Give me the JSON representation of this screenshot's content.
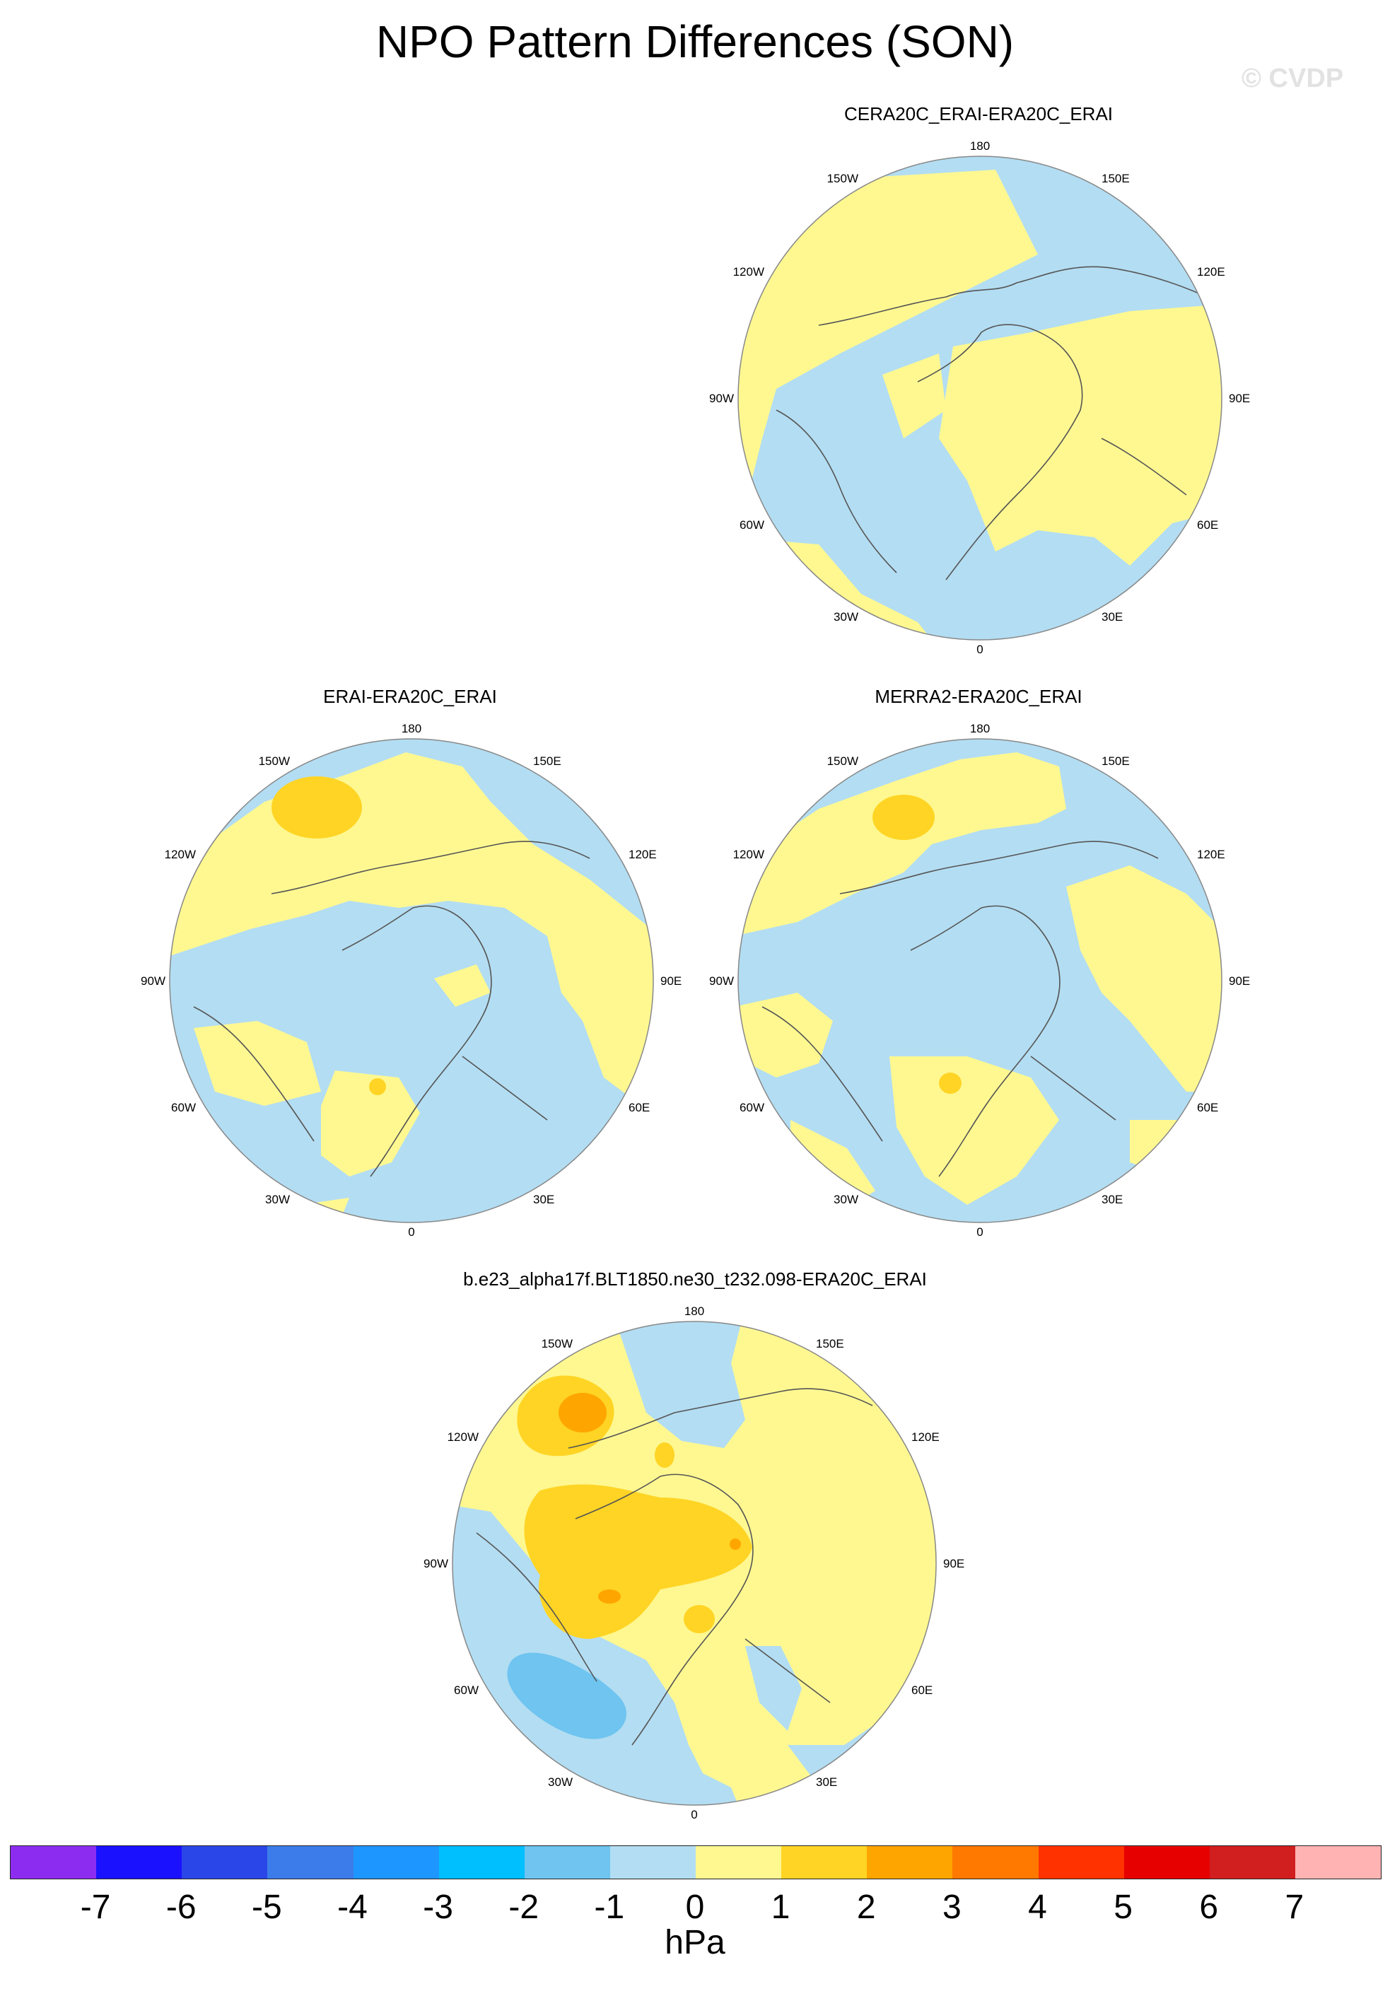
{
  "title": "NPO Pattern Differences (SON)",
  "watermark": "© CVDP",
  "colors": {
    "ocean_neg1": "#b3ddf2",
    "pos1": "#fff891",
    "pos2": "#ffd424",
    "pos3": "#ffa500",
    "neg2": "#6fc4f0",
    "coast": "#555555",
    "rim": "#888888"
  },
  "chart_data": [
    {
      "type": "heatmap",
      "projection": "north-polar-stereographic",
      "title": "CERA20C_ERAI-ERA20C_ERAI",
      "lon_labels": [
        "180",
        "150E",
        "120E",
        "90E",
        "60E",
        "30E",
        "0",
        "30W",
        "60W",
        "90W",
        "120W",
        "150W"
      ],
      "value_range_hpa": [
        -1,
        1
      ],
      "dominant_levels": [
        "-1 to 0",
        "0 to 1"
      ]
    },
    {
      "type": "heatmap",
      "projection": "north-polar-stereographic",
      "title": "ERAI-ERA20C_ERAI",
      "lon_labels": [
        "180",
        "150E",
        "120E",
        "90E",
        "60E",
        "30E",
        "0",
        "30W",
        "60W",
        "90W",
        "120W",
        "150W"
      ],
      "value_range_hpa": [
        -1,
        2
      ],
      "dominant_levels": [
        "-1 to 0",
        "0 to 1",
        "1 to 2"
      ]
    },
    {
      "type": "heatmap",
      "projection": "north-polar-stereographic",
      "title": "MERRA2-ERA20C_ERAI",
      "lon_labels": [
        "180",
        "150E",
        "120E",
        "90E",
        "60E",
        "30E",
        "0",
        "30W",
        "60W",
        "90W",
        "120W",
        "150W"
      ],
      "value_range_hpa": [
        -1,
        2
      ],
      "dominant_levels": [
        "-1 to 0",
        "0 to 1",
        "1 to 2"
      ]
    },
    {
      "type": "heatmap",
      "projection": "north-polar-stereographic",
      "title": "b.e23_alpha17f.BLT1850.ne30_t232.098-ERA20C_ERAI",
      "lon_labels": [
        "180",
        "150E",
        "120E",
        "90E",
        "60E",
        "30E",
        "0",
        "30W",
        "60W",
        "90W",
        "120W",
        "150W"
      ],
      "value_range_hpa": [
        -2,
        3
      ],
      "dominant_levels": [
        "-2 to -1",
        "-1 to 0",
        "0 to 1",
        "1 to 2",
        "2 to 3"
      ]
    }
  ],
  "colorbar": {
    "colors": [
      "#8c2cf0",
      "#1a12ff",
      "#2b46e8",
      "#3b7cea",
      "#1e96ff",
      "#00bfff",
      "#6fc4f0",
      "#b3ddf2",
      "#fff891",
      "#ffd424",
      "#ffa500",
      "#ff7800",
      "#ff3200",
      "#e60000",
      "#d11e1e",
      "#ffb3b3"
    ],
    "ticks": [
      "-7",
      "-6",
      "-5",
      "-4",
      "-3",
      "-2",
      "-1",
      "0",
      "1",
      "2",
      "3",
      "4",
      "5",
      "6",
      "7"
    ],
    "units": "hPa"
  }
}
